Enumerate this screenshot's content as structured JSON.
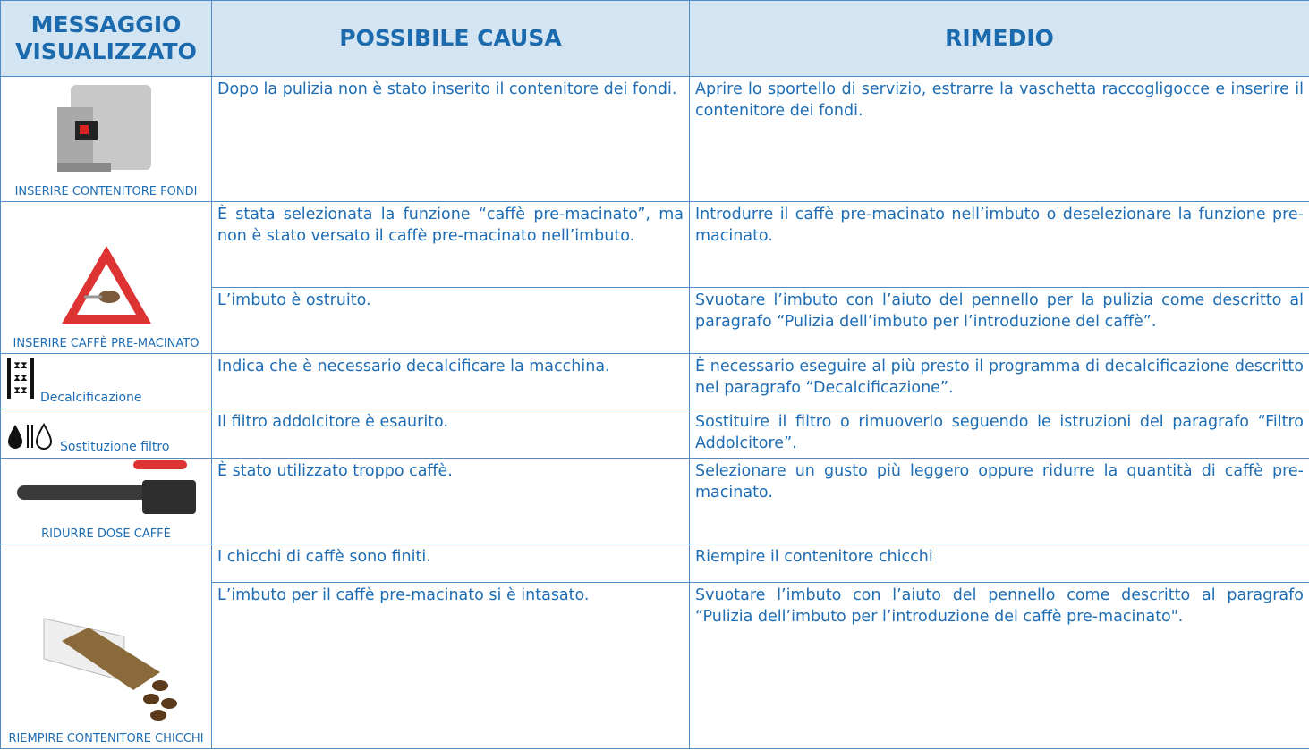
{
  "header": {
    "columns": [
      "MESSAGGIO VISUALIZZATO",
      "POSSIBILE CAUSA",
      "RIMEDIO"
    ]
  },
  "rows": [
    {
      "message": "INSERIRE CONTENITORE FONDI",
      "entries": [
        {
          "cause": "Dopo la pulizia non è stato inserito il contenitore dei fondi.",
          "remedy": "Aprire lo sportello di servizio, estrarre la vaschetta raccogligocce e inserire il contenitore dei fondi."
        }
      ]
    },
    {
      "message": "INSERIRE CAFFÈ PRE-MACINATO",
      "entries": [
        {
          "cause": "È stata selezionata la funzione “caffè pre-macinato”, ma non è stato versato il caffè pre-macinato nell’imbuto.",
          "remedy": "Introdurre il caffè pre-macinato nell’imbuto o deselezionare la funzione pre-macinato."
        },
        {
          "cause": "L’imbuto è ostruito.",
          "remedy": "Svuotare l’imbuto con l’aiuto del pennello per la pulizia come descritto al paragrafo “Pulizia dell’imbuto per l’introduzione del caffè”."
        }
      ]
    },
    {
      "message": "Decalcificazione",
      "entries": [
        {
          "cause": "Indica che è necessario decalcificare la macchina.",
          "remedy": "È necessario eseguire al più presto il programma di decalcificazione descritto nel paragrafo “Decalcificazione”."
        }
      ]
    },
    {
      "message": "Sostituzione filtro",
      "entries": [
        {
          "cause": "Il filtro addolcitore è esaurito.",
          "remedy": "Sostituire il filtro o rimuoverlo seguendo le istruzioni del paragrafo “Filtro Addolcitore”."
        }
      ]
    },
    {
      "message": "RIDURRE DOSE CAFFÈ",
      "entries": [
        {
          "cause": "È stato utilizzato troppo caffè.",
          "remedy": "Selezionare un gusto più leggero oppure ridurre la quantità di caffè pre-macinato."
        }
      ]
    },
    {
      "message": "RIEMPIRE CONTENITORE CHICCHI",
      "entries": [
        {
          "cause": "I chicchi di caffè sono finiti.",
          "remedy": "Riempire il contenitore chicchi"
        },
        {
          "cause": "L’imbuto per il caffè pre-macinato si è intasato.",
          "remedy": "Svuotare l’imbuto con l’aiuto del pennello come descritto al paragrafo “Pulizia dell’imbuto per l’introduzione del caffè pre-macinato\"."
        }
      ]
    }
  ]
}
